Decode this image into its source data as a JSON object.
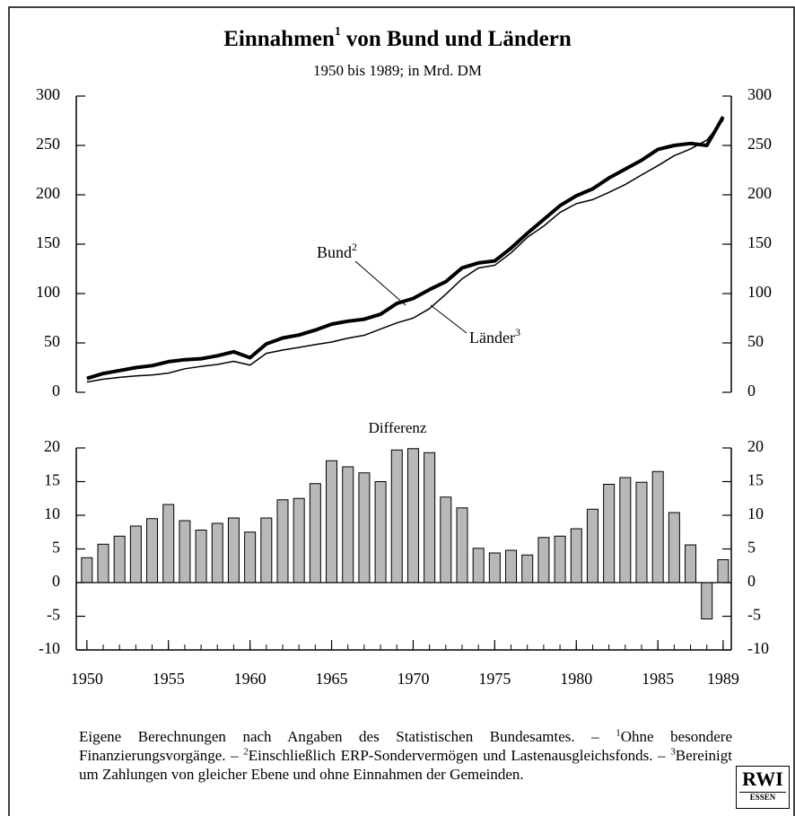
{
  "chart_data": [
    {
      "type": "line",
      "title": "Einnahmen",
      "title_note": "1",
      "title_rest": "von Bund und Ländern",
      "subtitle": "1950 bis 1989; in Mrd. DM",
      "x": [
        1950,
        1951,
        1952,
        1953,
        1954,
        1955,
        1956,
        1957,
        1958,
        1959,
        1960,
        1961,
        1962,
        1963,
        1964,
        1965,
        1966,
        1967,
        1968,
        1969,
        1970,
        1971,
        1972,
        1973,
        1974,
        1975,
        1976,
        1977,
        1978,
        1979,
        1980,
        1981,
        1982,
        1983,
        1984,
        1985,
        1986,
        1987,
        1988,
        1989
      ],
      "series": [
        {
          "name": "Bund",
          "note": "2",
          "color": "#000000",
          "values": [
            14,
            19,
            22,
            25,
            27,
            31,
            33,
            34,
            37,
            41,
            35,
            49,
            55,
            58,
            63,
            69,
            72,
            74,
            79,
            90,
            95,
            104,
            112,
            126,
            131,
            133,
            146,
            161,
            175,
            189,
            199,
            206,
            217,
            226,
            235,
            246,
            250,
            252,
            250,
            279
          ]
        },
        {
          "name": "Länder",
          "note": "3",
          "color": "#000000",
          "values": [
            10.3,
            13.3,
            15.1,
            16.6,
            17.5,
            19.4,
            23.8,
            26.2,
            28.2,
            31.4,
            27.5,
            39.4,
            42.7,
            45.5,
            48.3,
            50.9,
            54.8,
            57.7,
            64,
            70.3,
            75.1,
            84.7,
            99.3,
            114.9,
            125.9,
            128.6,
            141.2,
            156.9,
            168.3,
            182.1,
            191,
            195.1,
            202.4,
            210.4,
            220.1,
            229.5,
            239.6,
            246.4,
            255.4,
            275.6
          ]
        }
      ],
      "xlim": [
        1949.35,
        1989.5
      ],
      "ylim": [
        0,
        300
      ],
      "yticks": [
        0,
        50,
        100,
        150,
        200,
        250,
        300
      ]
    },
    {
      "type": "bar",
      "title": "Differenz",
      "x": [
        1950,
        1951,
        1952,
        1953,
        1954,
        1955,
        1956,
        1957,
        1958,
        1959,
        1960,
        1961,
        1962,
        1963,
        1964,
        1965,
        1966,
        1967,
        1968,
        1969,
        1970,
        1971,
        1972,
        1973,
        1974,
        1975,
        1976,
        1977,
        1978,
        1979,
        1980,
        1981,
        1982,
        1983,
        1984,
        1985,
        1986,
        1987,
        1988,
        1989
      ],
      "values": [
        3.7,
        5.7,
        6.9,
        8.4,
        9.5,
        11.6,
        9.2,
        7.8,
        8.8,
        9.6,
        7.5,
        9.6,
        12.3,
        12.5,
        14.7,
        18.1,
        17.2,
        16.3,
        15.0,
        19.7,
        19.9,
        19.3,
        12.7,
        11.1,
        5.1,
        4.4,
        4.8,
        4.1,
        6.7,
        6.9,
        8.0,
        10.9,
        14.6,
        15.6,
        14.9,
        16.5,
        10.4,
        5.6,
        -5.4,
        3.4
      ],
      "color": "#b8b8b8",
      "xlim": [
        1949.35,
        1989.5
      ],
      "xticks": [
        1950,
        1955,
        1960,
        1965,
        1970,
        1975,
        1980,
        1985,
        1989
      ],
      "ylim": [
        -10,
        20
      ],
      "yticks": [
        -10,
        -5,
        0,
        5,
        10,
        15,
        20
      ]
    }
  ],
  "footnote": [
    "Eigene Berechnungen nach Angaben des Statistischen Bundesamtes. – ",
    "1",
    "Ohne besondere Finanzierungsvorgänge. – ",
    "2",
    "Einschließlich ERP-Sondervermögen und Lastenausgleichsfonds. – ",
    "3",
    "Bereinigt um Zahlungen von gleicher Ebene und ohne Einnahmen der Gemeinden."
  ],
  "logo": {
    "name": "RWI",
    "city": "ESSEN"
  }
}
